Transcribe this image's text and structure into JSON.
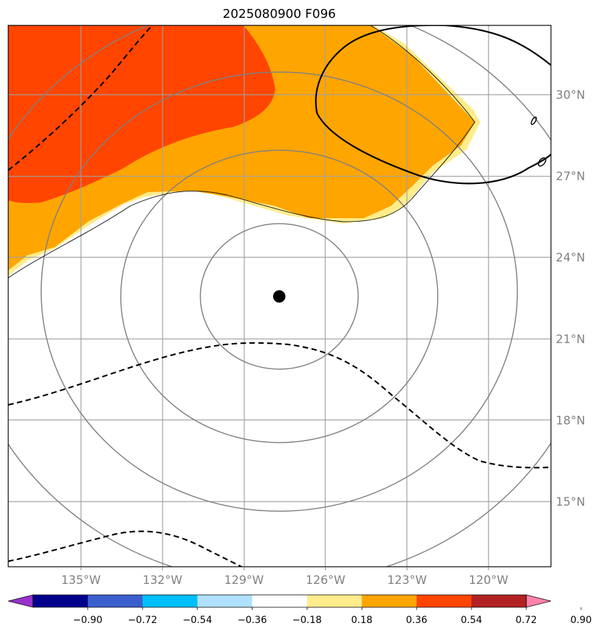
{
  "chart_data": {
    "type": "map",
    "title": "2025080900 F096",
    "x_ticks": [
      "135°W",
      "132°W",
      "129°W",
      "126°W",
      "123°W",
      "120°W"
    ],
    "y_ticks": [
      "30°N",
      "27°N",
      "24°N",
      "21°N",
      "18°N",
      "15°N"
    ],
    "x_tick_values": [
      -135,
      -132,
      -129,
      -126,
      -123,
      -120
    ],
    "y_tick_values": [
      30,
      27,
      24,
      21,
      18,
      15
    ],
    "center": {
      "lon": -127.7,
      "lat": 22.6
    },
    "grid": true,
    "range_rings": 4,
    "colorbar": {
      "ticks": [
        "−0.90",
        "−0.72",
        "−0.54",
        "−0.36",
        "−0.18",
        "0.18",
        "0.36",
        "0.54",
        "0.72",
        "0.90"
      ],
      "tick_values": [
        -0.9,
        -0.72,
        -0.54,
        -0.36,
        -0.18,
        0.18,
        0.36,
        0.54,
        0.72,
        0.9
      ],
      "colors": [
        "#9932cc",
        "#00008b",
        "#3a5fcd",
        "#00bfff",
        "#b0e2ff",
        "#ffffff",
        "#ffec8b",
        "#ffa500",
        "#ff4500",
        "#b22222",
        "#ff82ab"
      ],
      "extend": "both"
    },
    "shaded_levels": [
      {
        "range": [
          0.18,
          0.36
        ],
        "color": "#ffec8b"
      },
      {
        "range": [
          0.36,
          0.54
        ],
        "color": "#ffa500"
      },
      {
        "range": [
          0.54,
          0.72
        ],
        "color": "#ff4500"
      }
    ],
    "contours": {
      "positive": "solid",
      "negative": "dashed",
      "color": "#000000"
    }
  }
}
